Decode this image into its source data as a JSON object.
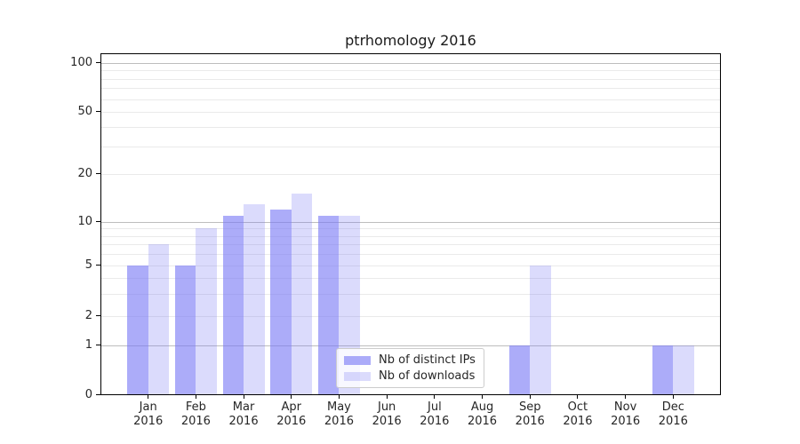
{
  "chart_data": {
    "type": "bar",
    "title": "ptrhomology 2016",
    "year_label": "2016",
    "categories": [
      "Jan",
      "Feb",
      "Mar",
      "Apr",
      "May",
      "Jun",
      "Jul",
      "Aug",
      "Sep",
      "Oct",
      "Nov",
      "Dec"
    ],
    "series": [
      {
        "name": "Nb of distinct IPs",
        "values": [
          5,
          5,
          11,
          12,
          11,
          0,
          0,
          0,
          1,
          0,
          0,
          1
        ]
      },
      {
        "name": "Nb of downloads",
        "values": [
          7,
          9,
          13,
          15,
          11,
          0,
          0,
          0,
          5,
          0,
          0,
          1
        ]
      }
    ],
    "xlabel": "",
    "ylabel": "",
    "yscale": "symlog-like (linear 0-1, log above)",
    "ylim": [
      0,
      110
    ],
    "yticks": [
      0,
      1,
      2,
      5,
      10,
      20,
      50,
      100
    ],
    "grid": "on",
    "grid_major_values": [
      1,
      10,
      100
    ],
    "grid_minor_values": [
      2,
      3,
      4,
      5,
      6,
      7,
      8,
      9,
      20,
      30,
      40,
      50,
      60,
      70,
      80,
      90
    ],
    "legend_position": "lower center"
  },
  "colors": {
    "ips_bar": "rgba(121,121,245,0.62)",
    "downloads_bar": "rgba(121,121,245,0.27)",
    "grid_major": "#bdbdbd",
    "grid_minor": "#eaeaea",
    "axis": "#000000",
    "text": "#262626"
  }
}
